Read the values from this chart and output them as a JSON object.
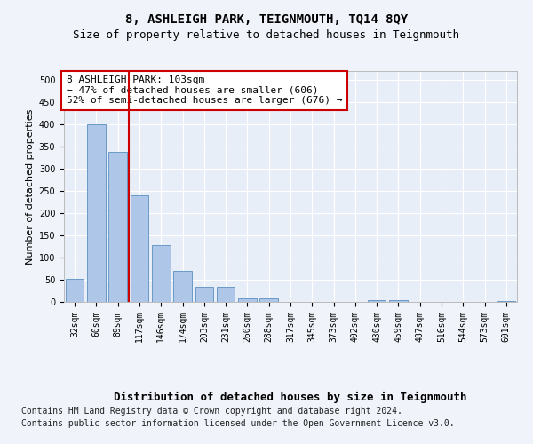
{
  "title1": "8, ASHLEIGH PARK, TEIGNMOUTH, TQ14 8QY",
  "title2": "Size of property relative to detached houses in Teignmouth",
  "xlabel": "Distribution of detached houses by size in Teignmouth",
  "ylabel": "Number of detached properties",
  "categories": [
    "32sqm",
    "60sqm",
    "89sqm",
    "117sqm",
    "146sqm",
    "174sqm",
    "203sqm",
    "231sqm",
    "260sqm",
    "288sqm",
    "317sqm",
    "345sqm",
    "373sqm",
    "402sqm",
    "430sqm",
    "459sqm",
    "487sqm",
    "516sqm",
    "544sqm",
    "573sqm",
    "601sqm"
  ],
  "values": [
    52,
    400,
    338,
    241,
    128,
    70,
    35,
    35,
    8,
    8,
    0,
    0,
    0,
    0,
    5,
    5,
    0,
    0,
    0,
    0,
    3
  ],
  "bar_color": "#aec6e8",
  "bar_edge_color": "#5a8fc0",
  "property_bin_index": 2,
  "annotation_text": "8 ASHLEIGH PARK: 103sqm\n← 47% of detached houses are smaller (606)\n52% of semi-detached houses are larger (676) →",
  "vline_color": "#cc0000",
  "annotation_box_edge": "#cc0000",
  "ylim": [
    0,
    520
  ],
  "yticks": [
    0,
    50,
    100,
    150,
    200,
    250,
    300,
    350,
    400,
    450,
    500
  ],
  "footer1": "Contains HM Land Registry data © Crown copyright and database right 2024.",
  "footer2": "Contains public sector information licensed under the Open Government Licence v3.0.",
  "fig_facecolor": "#f0f4fa",
  "plot_bg_color": "#e8eef8",
  "grid_color": "#ffffff",
  "title1_fontsize": 10,
  "title2_fontsize": 9,
  "ylabel_fontsize": 8,
  "xlabel_fontsize": 9,
  "tick_fontsize": 7,
  "annotation_fontsize": 8,
  "footer_fontsize": 7
}
